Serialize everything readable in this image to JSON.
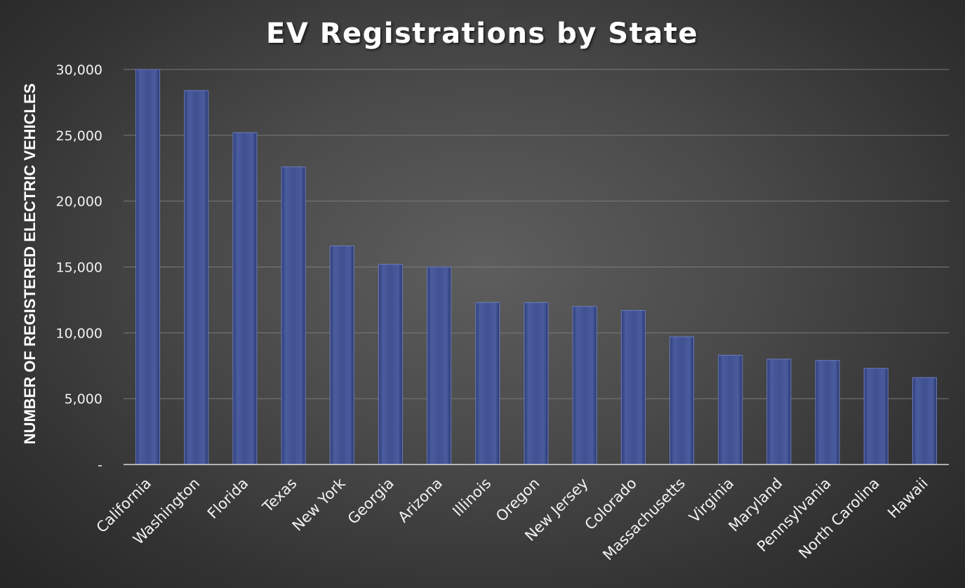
{
  "chart_data": {
    "type": "bar",
    "title": "EV Registrations by State",
    "xlabel": "",
    "ylabel": "NUMBER OF REGISTERED ELECTRIC VEHICLES",
    "ylim": [
      0,
      30000
    ],
    "y_ticks": [
      0,
      5000,
      10000,
      15000,
      20000,
      25000,
      30000
    ],
    "y_tick_labels": [
      "-",
      "5,000",
      "10,000",
      "15,000",
      "20,000",
      "25,000",
      "30,000"
    ],
    "grid": true,
    "legend": "none",
    "bar_color": "#3f5190",
    "categories": [
      "California",
      "Washington",
      "Florida",
      "Texas",
      "New York",
      "Georgia",
      "Arizona",
      "Illinois",
      "Oregon",
      "New Jersey",
      "Colorado",
      "Massachusetts",
      "Virginia",
      "Maryland",
      "Pennsylvania",
      "North Carolina",
      "Hawaii"
    ],
    "values": [
      30000,
      28400,
      25200,
      22600,
      16600,
      15200,
      15000,
      12300,
      12300,
      12000,
      11700,
      9700,
      8300,
      8000,
      7900,
      7300,
      6600
    ]
  }
}
